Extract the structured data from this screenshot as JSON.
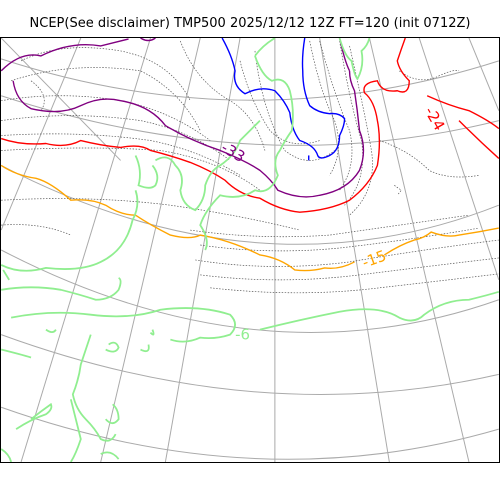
{
  "title": "NCEP(See disclaimer) TMP500 2025/12/12 12Z FT=120 (init 0712Z)",
  "contour_labels": {
    "purple": "-33",
    "red": "-24",
    "orange": "-15",
    "green": "-6"
  },
  "colors": {
    "purple": "#800080",
    "red": "#ff0000",
    "orange": "#ffa500",
    "green": "#90ee90",
    "blue": "#0000ff",
    "coast": "#555555",
    "grid": "#aaaaaa"
  }
}
